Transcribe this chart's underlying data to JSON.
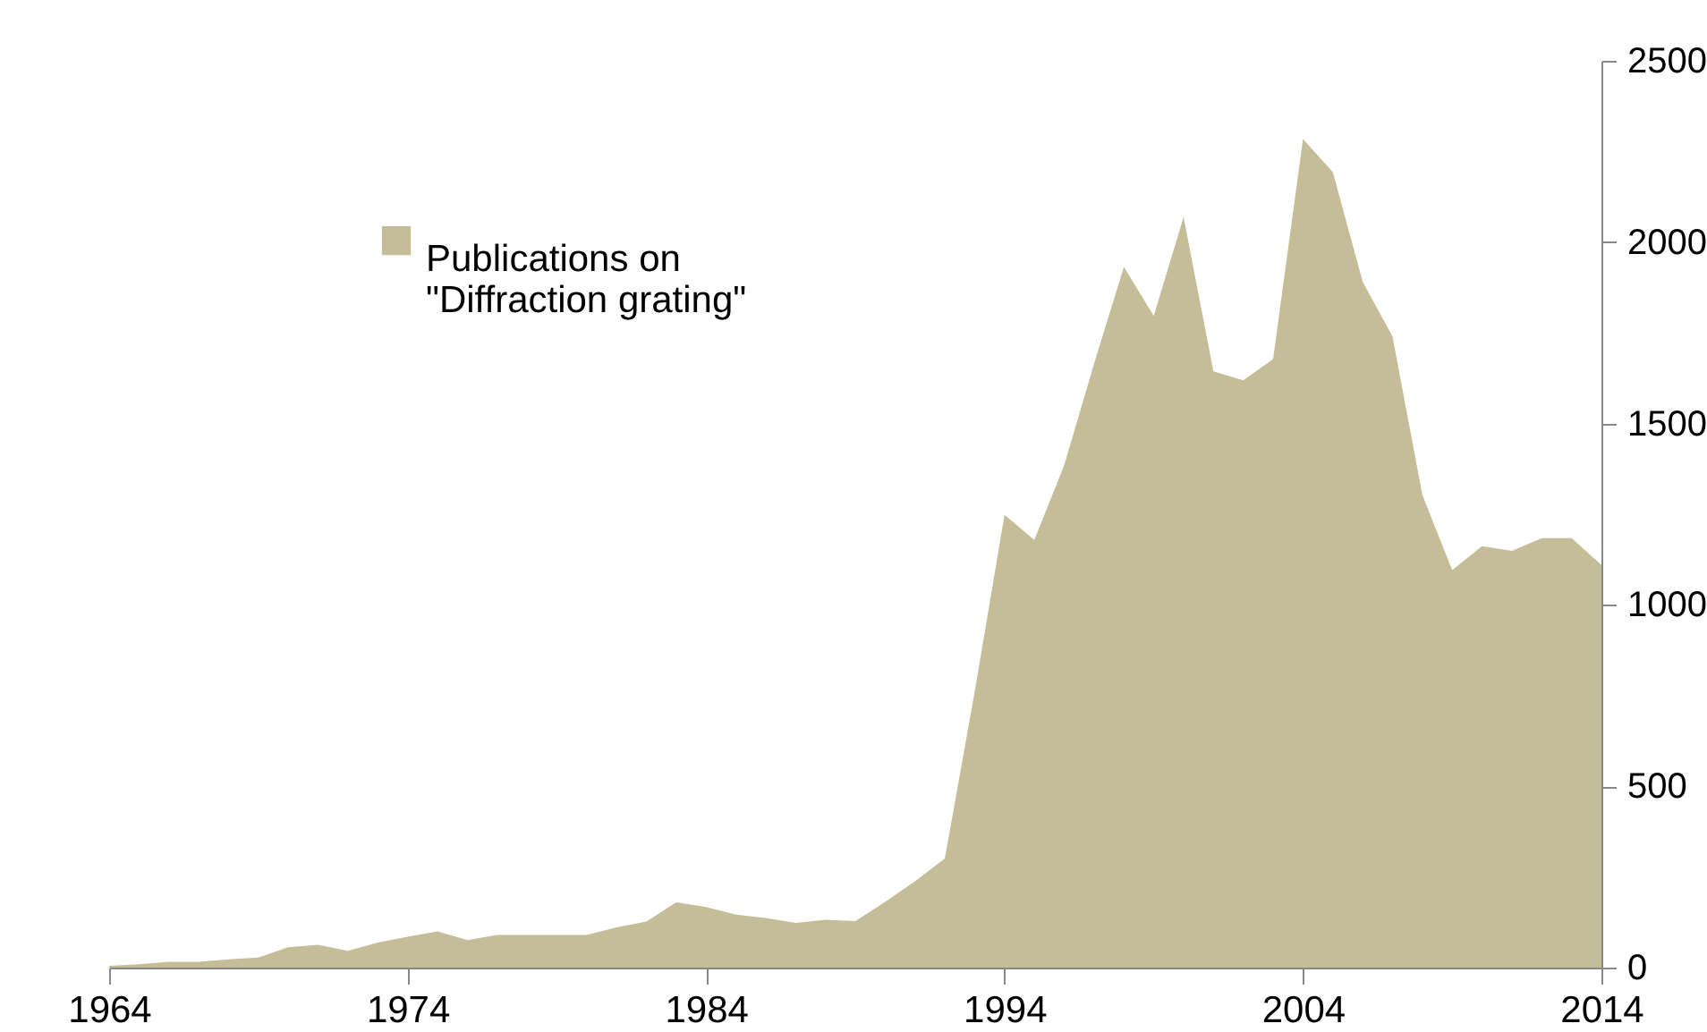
{
  "chart_data": {
    "type": "area",
    "x": [
      1964,
      1965,
      1966,
      1967,
      1968,
      1969,
      1970,
      1971,
      1972,
      1973,
      1974,
      1975,
      1976,
      1977,
      1978,
      1979,
      1980,
      1981,
      1982,
      1983,
      1984,
      1985,
      1986,
      1987,
      1988,
      1989,
      1990,
      1991,
      1992,
      1993,
      1994,
      1995,
      1996,
      1997,
      1998,
      1999,
      2000,
      2001,
      2002,
      2003,
      2004,
      2005,
      2006,
      2007,
      2008,
      2009,
      2010,
      2011,
      2012,
      2013,
      2014
    ],
    "series": [
      {
        "name": "Publications on \"Diffraction grating\"",
        "color": "#c4bd97",
        "values": [
          5,
          9,
          16,
          16,
          23,
          28,
          56,
          63,
          46,
          69,
          85,
          100,
          76,
          90,
          90,
          90,
          90,
          111,
          127,
          180,
          167,
          146,
          137,
          123,
          132,
          128,
          181,
          238,
          301,
          760,
          1248,
          1179,
          1385,
          1665,
          1932,
          1797,
          2069,
          1644,
          1619,
          1678,
          2284,
          2193,
          1891,
          1740,
          1303,
          1096,
          1162,
          1149,
          1184,
          1184,
          1110
        ]
      }
    ],
    "xlim": [
      1964,
      2014
    ],
    "xticks": [
      1964,
      1974,
      1984,
      1994,
      2004,
      2014
    ],
    "ylim": [
      0,
      2500
    ],
    "yticks": [
      0,
      500,
      1000,
      1500,
      2000,
      2500
    ],
    "legend": "top left",
    "grid": false
  }
}
